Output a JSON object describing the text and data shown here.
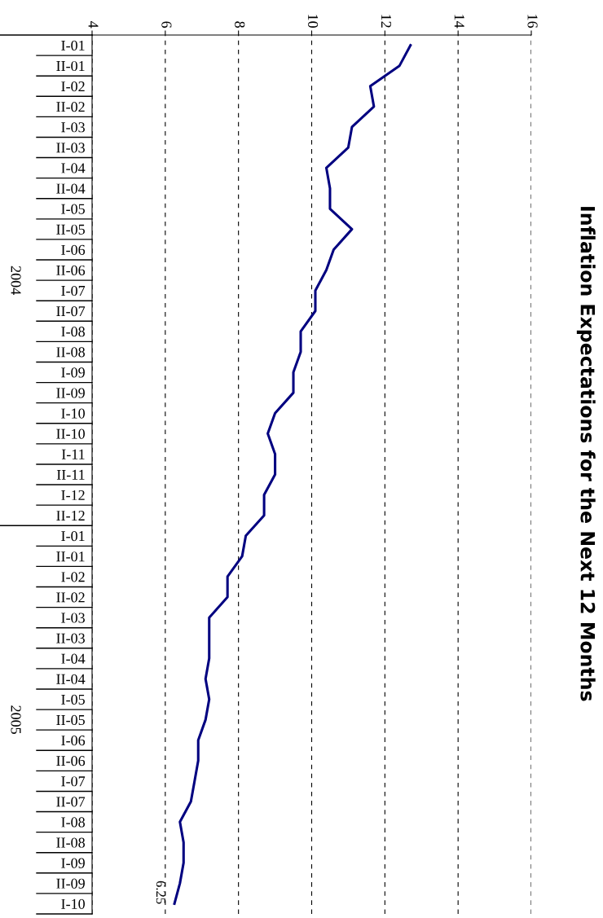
{
  "chart_data": {
    "type": "line",
    "orientation": "horizontal",
    "title": "Inflation Expectations for the Next 12 Months",
    "categories": [
      "I-01",
      "II-01",
      "I-02",
      "II-02",
      "I-03",
      "II-03",
      "I-04",
      "II-04",
      "I-05",
      "II-05",
      "I-06",
      "II-06",
      "I-07",
      "II-07",
      "I-08",
      "II-08",
      "I-09",
      "II-09",
      "I-10",
      "II-10",
      "I-11",
      "II-11",
      "I-12",
      "II-12",
      "I-01",
      "II-01",
      "I-02",
      "II-02",
      "I-03",
      "II-03",
      "I-04",
      "II-04",
      "I-05",
      "II-05",
      "I-06",
      "II-06",
      "I-07",
      "II-07",
      "I-08",
      "II-08",
      "I-09",
      "II-09",
      "I-10"
    ],
    "series": [
      {
        "color": "#000080",
        "values": [
          12.7,
          12.4,
          11.6,
          11.7,
          11.1,
          11.0,
          10.4,
          10.5,
          10.5,
          11.1,
          10.6,
          10.4,
          10.1,
          10.1,
          9.7,
          9.7,
          9.5,
          9.5,
          9.0,
          8.8,
          9.0,
          9.0,
          8.7,
          8.7,
          8.2,
          8.1,
          7.7,
          7.7,
          7.2,
          7.2,
          7.2,
          7.1,
          7.2,
          7.1,
          6.9,
          6.9,
          6.8,
          6.7,
          6.4,
          6.5,
          6.5,
          6.4,
          6.25
        ],
        "value_labels": [
          null,
          null,
          null,
          null,
          null,
          null,
          null,
          null,
          null,
          null,
          null,
          null,
          null,
          null,
          null,
          null,
          null,
          null,
          null,
          null,
          null,
          null,
          null,
          null,
          null,
          null,
          null,
          null,
          null,
          null,
          null,
          null,
          null,
          null,
          null,
          null,
          null,
          null,
          null,
          null,
          null,
          null,
          "6.25"
        ]
      }
    ],
    "annotations": [
      "2004",
      "2005"
    ],
    "xlim": [
      4,
      16
    ],
    "xticks": [
      4,
      6,
      8,
      10,
      12,
      14,
      16
    ],
    "grid": "x",
    "line_style": "solid",
    "marker": "none"
  }
}
